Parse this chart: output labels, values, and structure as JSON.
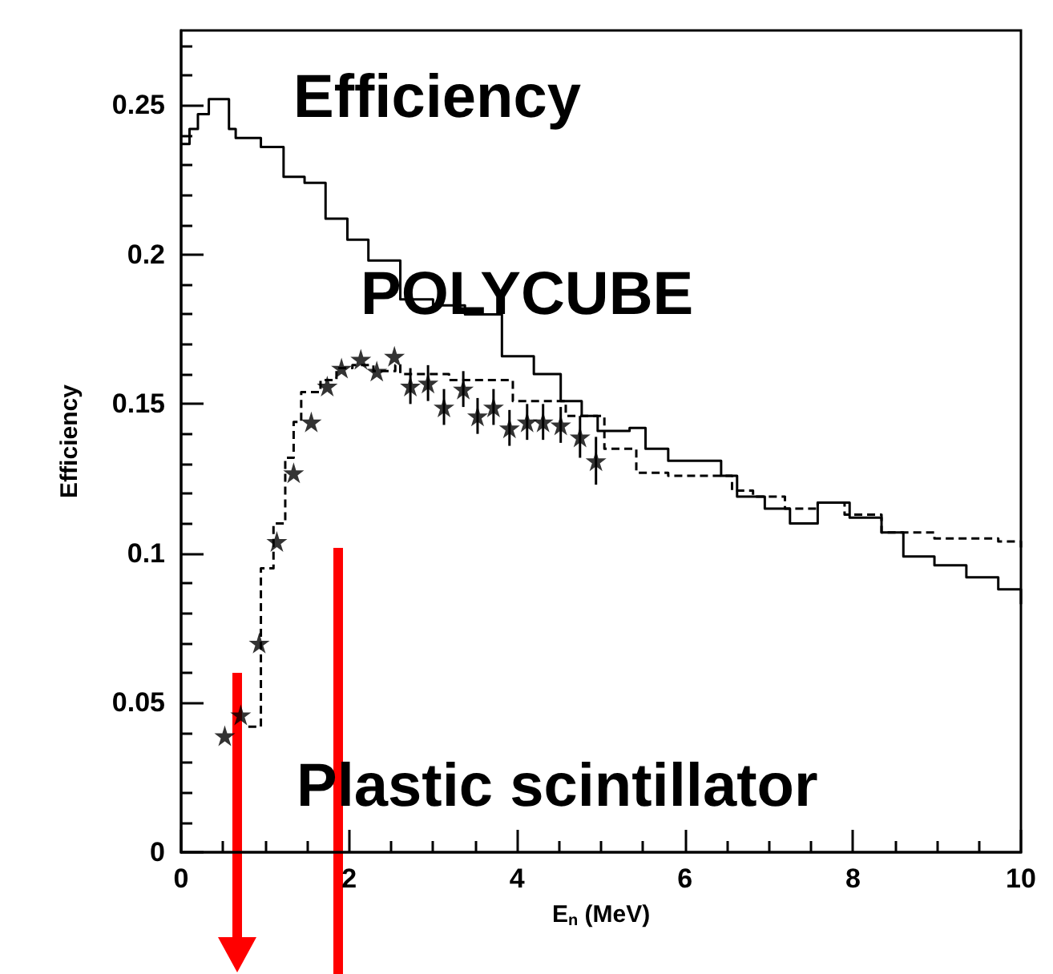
{
  "chart_data": {
    "type": "step",
    "xlabel": "E$_{n}$ (MeV)",
    "ylabel": "Efficiency",
    "annotations": [
      "Efficiency",
      "POLYCUBE",
      "Plastic scintillator"
    ],
    "xlim": [
      0,
      10
    ],
    "xticks": [
      0,
      2,
      4,
      6,
      8,
      10
    ],
    "ylim": [
      0,
      0.275
    ],
    "yticks": [
      0,
      0.05,
      0.1,
      0.15,
      0.2,
      0.25
    ],
    "grid": false,
    "series": [
      {
        "type": "step",
        "color": "#000000",
        "line_style": "solid",
        "x": [
          0,
          0.1,
          0.2,
          0.33,
          0.57,
          0.65,
          0.95,
          1.22,
          1.47,
          1.72,
          1.98,
          2.23,
          2.61,
          3.0,
          3.38,
          3.82,
          4.2,
          4.52,
          4.77,
          4.96,
          5.34,
          5.53,
          5.8,
          6.3,
          6.43,
          6.62,
          6.95,
          7.25,
          7.58,
          7.96,
          8.34,
          8.6,
          8.97,
          9.35,
          9.73,
          10
        ],
        "values": [
          0.237,
          0.242,
          0.247,
          0.252,
          0.242,
          0.239,
          0.236,
          0.226,
          0.224,
          0.212,
          0.205,
          0.198,
          0.185,
          0.183,
          0.18,
          0.166,
          0.16,
          0.151,
          0.146,
          0.141,
          0.142,
          0.135,
          0.131,
          0.131,
          0.126,
          0.119,
          0.115,
          0.11,
          0.117,
          0.112,
          0.107,
          0.099,
          0.096,
          0.092,
          0.088,
          0.083
        ]
      },
      {
        "type": "step",
        "color": "#000000",
        "line_style": "dashed",
        "x": [
          0.8,
          0.95,
          1.1,
          1.24,
          1.34,
          1.43,
          1.66,
          1.85,
          2.04,
          2.29,
          2.55,
          2.61,
          3.19,
          3.95,
          4.58,
          5.04,
          5.42,
          5.8,
          6.18,
          6.56,
          6.81,
          7.19,
          7.58,
          7.9,
          8.34,
          8.59,
          8.97,
          9.35,
          9.73,
          10
        ],
        "values": [
          0.042,
          0.095,
          0.11,
          0.132,
          0.144,
          0.154,
          0.158,
          0.162,
          0.163,
          0.161,
          0.163,
          0.16,
          0.158,
          0.151,
          0.146,
          0.135,
          0.127,
          0.126,
          0.126,
          0.121,
          0.119,
          0.115,
          0.117,
          0.113,
          0.107,
          0.107,
          0.105,
          0.105,
          0.104,
          0.102
        ]
      },
      {
        "type": "scatter",
        "color": "#000000",
        "marker": "star",
        "x": [
          0.52,
          0.71,
          0.93,
          1.14,
          1.34,
          1.55,
          1.74,
          1.91,
          2.14,
          2.33,
          2.54,
          2.73,
          2.94,
          3.13,
          3.36,
          3.53,
          3.72,
          3.91,
          4.12,
          4.31,
          4.52,
          4.75,
          4.94
        ],
        "values": [
          0.039,
          0.046,
          0.07,
          0.104,
          0.127,
          0.144,
          0.156,
          0.162,
          0.165,
          0.161,
          0.166,
          0.156,
          0.157,
          0.149,
          0.155,
          0.146,
          0.149,
          0.142,
          0.144,
          0.144,
          0.143,
          0.139,
          0.131
        ],
        "errors": [
          null,
          null,
          null,
          null,
          null,
          null,
          null,
          null,
          null,
          null,
          null,
          0.006,
          0.006,
          0.006,
          0.006,
          0.006,
          0.006,
          0.006,
          0.006,
          0.006,
          0.006,
          0.007,
          0.008
        ]
      }
    ]
  }
}
